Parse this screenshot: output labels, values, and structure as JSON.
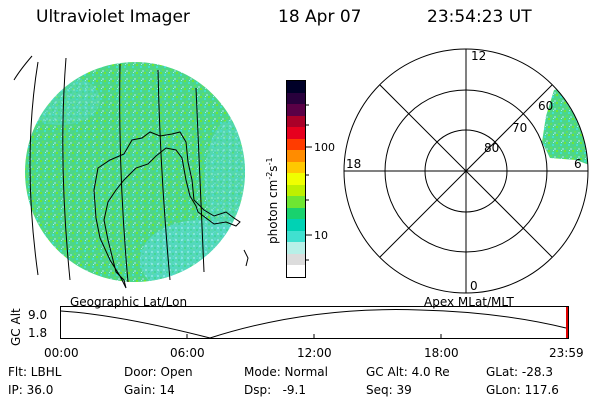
{
  "header": {
    "instrument": "Ultraviolet Imager",
    "date": "18 Apr 07",
    "time": "23:54:23 UT"
  },
  "colorbar": {
    "label": "photon cm",
    "label_sup1": "-2",
    "label_mid": "s",
    "label_sup2": "-1",
    "ticks": [
      "100",
      "10"
    ],
    "colors": [
      "#ffffff",
      "#dcdcdc",
      "#b8f0e8",
      "#40e0d0",
      "#00d2b4",
      "#19d26e",
      "#6ee632",
      "#bef000",
      "#f0ff00",
      "#ffc800",
      "#ff8c00",
      "#ff3c00",
      "#e6001e",
      "#aa0028",
      "#5a0046",
      "#28003c",
      "#000028"
    ]
  },
  "polar_plot": {
    "labels": {
      "top": "12",
      "left": "18",
      "right": "6",
      "bottom": "0",
      "lat60": "60",
      "lat70": "70",
      "lat80": "80"
    }
  },
  "labels": {
    "geo": "Geographic Lat/Lon",
    "apex": "Apex MLat/MLT"
  },
  "timeline": {
    "ylabel": "GC Alt",
    "ymax": "9.0",
    "ymin": "1.8",
    "ticks": [
      "00:00",
      "06:00",
      "12:00",
      "18:00",
      "23:59"
    ]
  },
  "status": {
    "flt": "Flt: LBHL",
    "ip": "IP: 36.0",
    "door": "Door: Open",
    "gain": "Gain: 14",
    "mode": "Mode: Normal",
    "dsp": "Dsp:   -9.1",
    "gcalt": "GC Alt: 4.0 Re",
    "seq": "Seq: 39",
    "glat": "GLat: -28.3",
    "glon": "GLon: 117.6"
  }
}
